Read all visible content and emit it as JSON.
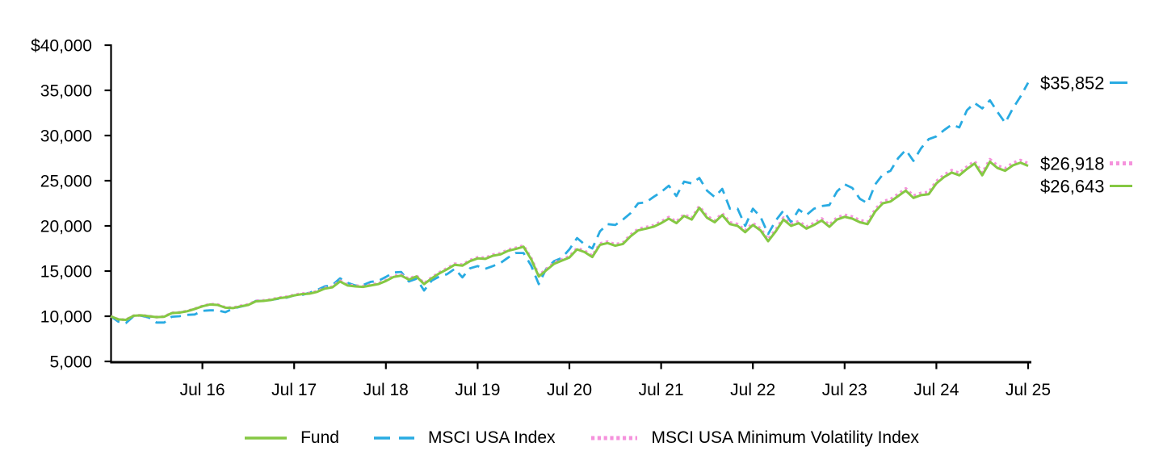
{
  "colors": {
    "fund": "#85C843",
    "msci_usa_index": "#29ABE2",
    "msci_usa_min_vol_index": "#F592DC",
    "axis": "#000000",
    "text": "#000000"
  },
  "chart": {
    "y_axis": {
      "labels": [
        "$40,000",
        "35,000",
        "30,000",
        "25,000",
        "20,000",
        "15,000",
        "10,000",
        "5,000"
      ],
      "values": [
        40000,
        35000,
        30000,
        25000,
        20000,
        15000,
        10000,
        5000
      ]
    },
    "x_axis": {
      "labels": [
        "Jul 16",
        "Jul 17",
        "Jul 18",
        "Jul 19",
        "Jul 20",
        "Jul 21",
        "Jul 22",
        "Jul 23",
        "Jul 24",
        "Jul 25"
      ]
    },
    "end_labels": [
      {
        "text": "$35,852",
        "series": "msci_usa_index"
      },
      {
        "text": "$26,918",
        "series": "msci_usa_min_vol_index"
      },
      {
        "text": "$26,643",
        "series": "fund"
      }
    ],
    "legend": {
      "items": [
        {
          "label": "Fund",
          "series": "fund"
        },
        {
          "label": "MSCI USA Index",
          "series": "msci_usa_index"
        },
        {
          "label": "MSCI USA Minimum Volatility Index",
          "series": "msci_usa_min_vol_index"
        }
      ]
    }
  },
  "chart_data": {
    "type": "line",
    "ylim": [
      5000,
      40000
    ],
    "y_ticks": [
      40000,
      35000,
      30000,
      25000,
      20000,
      15000,
      10000,
      5000
    ],
    "x_point_count": 121,
    "x_tick_indices": [
      12,
      24,
      36,
      48,
      60,
      72,
      84,
      96,
      108,
      120
    ],
    "x_tick_labels": [
      "Jul 16",
      "Jul 17",
      "Jul 18",
      "Jul 19",
      "Jul 20",
      "Jul 21",
      "Jul 22",
      "Jul 23",
      "Jul 24",
      "Jul 25"
    ],
    "grid": false,
    "legend_position": "bottom",
    "series": [
      {
        "name": "Fund",
        "key": "fund",
        "style": "solid",
        "end_value": 26643,
        "values": [
          10000,
          9650,
          9600,
          10050,
          10100,
          10000,
          9900,
          9950,
          10350,
          10400,
          10550,
          10800,
          11100,
          11300,
          11250,
          10950,
          10900,
          11100,
          11250,
          11650,
          11700,
          11800,
          12000,
          12100,
          12300,
          12450,
          12500,
          12700,
          13050,
          13200,
          13850,
          13400,
          13300,
          13250,
          13400,
          13550,
          13900,
          14350,
          14500,
          14050,
          14400,
          13550,
          14200,
          14750,
          15200,
          15700,
          15600,
          16100,
          16400,
          16350,
          16700,
          16850,
          17250,
          17450,
          17700,
          16300,
          14400,
          15100,
          15800,
          16150,
          16500,
          17400,
          17100,
          16550,
          17900,
          18100,
          17800,
          18000,
          18850,
          19500,
          19700,
          19900,
          20300,
          20800,
          20300,
          21100,
          20700,
          22000,
          20900,
          20400,
          21200,
          20200,
          20000,
          19300,
          20100,
          19500,
          18300,
          19400,
          20700,
          20000,
          20300,
          19700,
          20100,
          20600,
          19900,
          20700,
          21000,
          20800,
          20400,
          20200,
          21600,
          22500,
          22700,
          23300,
          23900,
          23100,
          23400,
          23500,
          24700,
          25400,
          25900,
          25600,
          26300,
          26900,
          25600,
          27100,
          26400,
          26100,
          26700,
          27000,
          26643
        ]
      },
      {
        "name": "MSCI USA Index",
        "key": "msci_usa_index",
        "style": "dashed",
        "end_value": 35852,
        "values": [
          10000,
          9400,
          9250,
          10000,
          10050,
          9850,
          9300,
          9300,
          9950,
          10000,
          10150,
          10200,
          10600,
          10650,
          10650,
          10450,
          10850,
          11050,
          11250,
          11700,
          11700,
          11800,
          11950,
          12050,
          12300,
          12350,
          12600,
          12900,
          13300,
          13450,
          14200,
          13700,
          13400,
          13450,
          13800,
          13900,
          14350,
          14850,
          14900,
          13850,
          14150,
          12850,
          13950,
          14400,
          14650,
          15250,
          14300,
          15300,
          15550,
          15250,
          15550,
          15900,
          16500,
          17000,
          17000,
          15600,
          13550,
          15300,
          16100,
          16450,
          17400,
          18650,
          17950,
          17500,
          19400,
          20200,
          20100,
          20700,
          21400,
          22500,
          22600,
          23200,
          23750,
          24450,
          23300,
          24900,
          24700,
          25300,
          23900,
          23200,
          24100,
          21900,
          21900,
          20000,
          21900,
          21000,
          19100,
          20600,
          21700,
          20400,
          21800,
          21200,
          21900,
          22200,
          22300,
          23800,
          24600,
          24200,
          23000,
          22500,
          24600,
          25700,
          26100,
          27500,
          28400,
          27200,
          28600,
          29600,
          29900,
          30600,
          31200,
          30900,
          32800,
          33600,
          33000,
          33900,
          32600,
          31400,
          33000,
          34300,
          35852
        ]
      },
      {
        "name": "MSCI USA Minimum Volatility Index",
        "key": "msci_usa_min_vol_index",
        "style": "dotted",
        "end_value": 26918,
        "values": [
          10000,
          9652,
          9605,
          10057,
          10109,
          10011,
          9914,
          9966,
          10368,
          10421,
          10573,
          10825,
          11127,
          11330,
          11282,
          10984,
          10937,
          11139,
          11291,
          11694,
          11746,
          11848,
          12050,
          12153,
          12355,
          12507,
          12560,
          12762,
          13114,
          13266,
          13919,
          13471,
          13373,
          13326,
          13478,
          13630,
          13982,
          14435,
          14587,
          14139,
          14492,
          13644,
          14296,
          14848,
          15301,
          15803,
          15705,
          16208,
          16510,
          16462,
          16815,
          16967,
          17369,
          17571,
          17824,
          16426,
          14528,
          15231,
          15933,
          16285,
          16637,
          17540,
          17242,
          16694,
          18047,
          18249,
          17951,
          18153,
          19006,
          19658,
          19860,
          20063,
          20465,
          20967,
          20469,
          21272,
          20874,
          22176,
          21079,
          20581,
          21383,
          20385,
          20188,
          19490,
          20292,
          19695,
          18497,
          19599,
          20902,
          20204,
          20506,
          19908,
          20311,
          20813,
          20115,
          20918,
          21220,
          21022,
          20624,
          20427,
          21829,
          22731,
          22934,
          23536,
          24138,
          23340,
          23643,
          23745,
          24947,
          25650,
          26152,
          25854,
          26556,
          27159,
          25861,
          27363,
          26666,
          26368,
          26970,
          27273,
          26918
        ]
      }
    ]
  }
}
